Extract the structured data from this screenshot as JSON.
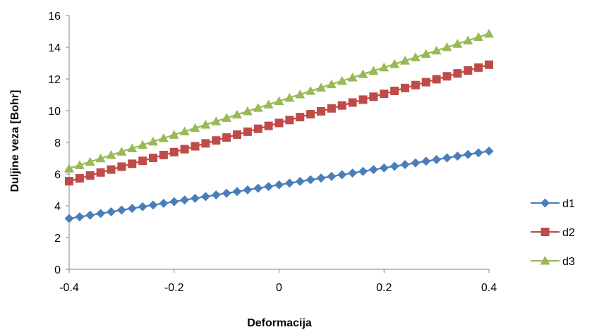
{
  "chart_data": {
    "type": "line",
    "title": "",
    "xlabel": "Deformacija",
    "ylabel": "Duljine veza [Bohr]",
    "xlim": [
      -0.4,
      0.4
    ],
    "ylim": [
      0,
      16
    ],
    "x_ticks": [
      "-0.4",
      "-0.2",
      "0",
      "0.2",
      "0.4"
    ],
    "y_ticks": [
      "0",
      "2",
      "4",
      "6",
      "8",
      "10",
      "12",
      "14",
      "16"
    ],
    "grid": false,
    "legend_position": "right",
    "x": [
      -0.4,
      -0.38,
      -0.36,
      -0.34,
      -0.32,
      -0.3,
      -0.28,
      -0.26,
      -0.24,
      -0.22,
      -0.2,
      -0.18,
      -0.16,
      -0.14,
      -0.12,
      -0.1,
      -0.08,
      -0.06,
      -0.04,
      -0.02,
      0.0,
      0.02,
      0.04,
      0.06,
      0.08,
      0.1,
      0.12,
      0.14,
      0.16,
      0.18,
      0.2,
      0.22,
      0.24,
      0.26,
      0.28,
      0.3,
      0.32,
      0.34,
      0.36,
      0.38,
      0.4
    ],
    "series": [
      {
        "name": "d1",
        "color": "#4A7EBB",
        "marker": "diamond",
        "start": 3.2,
        "end": 7.45
      },
      {
        "name": "d2",
        "color": "#BE4B48",
        "marker": "square",
        "start": 5.55,
        "end": 12.9
      },
      {
        "name": "d3",
        "color": "#98B954",
        "marker": "triangle",
        "start": 6.35,
        "end": 14.85
      }
    ]
  }
}
